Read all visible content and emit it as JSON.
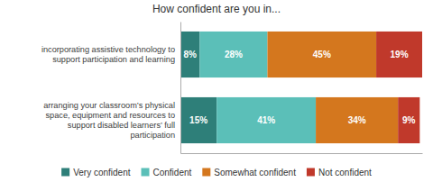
{
  "chart_data": {
    "type": "bar",
    "orientation": "horizontal",
    "stacked": true,
    "title": "How confident are you in...",
    "categories": [
      "incorporating assistive technology to\nsupport participation and learning",
      "arranging your classroom’s physical\nspace, equipment and resources to\nsupport disabled learners’ full\nparticipation"
    ],
    "series": [
      {
        "name": "Very confident",
        "color": "#2e7f79",
        "values": [
          8,
          15
        ],
        "value_labels": [
          "8%",
          "15%"
        ]
      },
      {
        "name": "Confident",
        "color": "#5bbfb8",
        "values": [
          28,
          41
        ],
        "value_labels": [
          "28%",
          "41%"
        ]
      },
      {
        "name": "Somewhat confident",
        "color": "#d4771e",
        "values": [
          45,
          34
        ],
        "value_labels": [
          "45%",
          "34%"
        ]
      },
      {
        "name": "Not confident",
        "color": "#c0392b",
        "values": [
          19,
          9
        ],
        "value_labels": [
          "19%",
          "9%"
        ]
      }
    ],
    "xlim": [
      0,
      100
    ],
    "tick_labels": false,
    "data_labels": true,
    "grid": false,
    "legend": "bottom"
  }
}
